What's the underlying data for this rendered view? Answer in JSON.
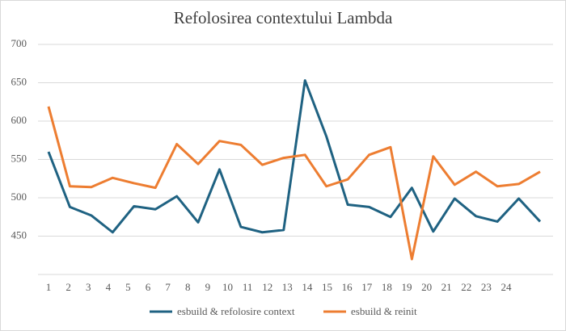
{
  "chart_data": {
    "type": "line",
    "title": "Refolosirea contextului Lambda",
    "categories": [
      "1",
      "2",
      "3",
      "4",
      "5",
      "6",
      "7",
      "8",
      "9",
      "10",
      "11",
      "12",
      "13",
      "14",
      "15",
      "16",
      "17",
      "18",
      "19",
      "20",
      "21",
      "22",
      "23",
      "24"
    ],
    "series": [
      {
        "name": "esbuild & refolosire context",
        "color": "#1f6282",
        "values": [
          560,
          488,
          477,
          455,
          489,
          485,
          502,
          468,
          537,
          462,
          455,
          458,
          653,
          580,
          491,
          488,
          475,
          513,
          456,
          499,
          476,
          469,
          499,
          469
        ]
      },
      {
        "name": "esbuild & reinit",
        "color": "#ed7d31",
        "values": [
          619,
          515,
          514,
          526,
          519,
          513,
          570,
          544,
          574,
          569,
          543,
          552,
          556,
          515,
          524,
          556,
          566,
          420,
          554,
          517,
          534,
          515,
          518,
          534
        ]
      }
    ],
    "ylim": [
      400,
      700
    ],
    "yticks": [
      450,
      500,
      550,
      600,
      650,
      700
    ],
    "grid": true
  }
}
